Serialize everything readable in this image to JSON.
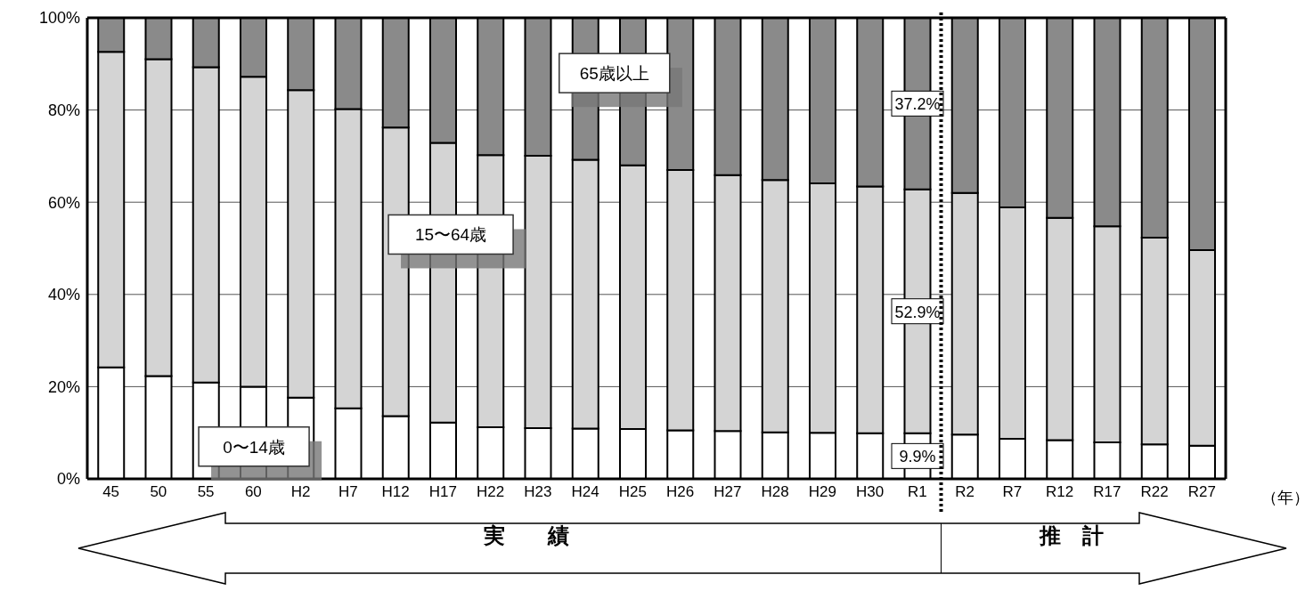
{
  "chart_data": {
    "type": "bar",
    "stacked": true,
    "xlabel": "（年）",
    "categories": [
      "45",
      "50",
      "55",
      "60",
      "H2",
      "H7",
      "H12",
      "H17",
      "H22",
      "H23",
      "H24",
      "H25",
      "H26",
      "H27",
      "H28",
      "H29",
      "H30",
      "R1",
      "R2",
      "R7",
      "R12",
      "R17",
      "R22",
      "R27"
    ],
    "series": [
      {
        "name": "0〜14歳",
        "color": "#ffffff",
        "values": [
          24.2,
          22.3,
          20.9,
          20.0,
          17.6,
          15.3,
          13.6,
          12.2,
          11.2,
          11.0,
          10.9,
          10.8,
          10.5,
          10.4,
          10.1,
          10.0,
          9.9,
          9.9,
          9.6,
          8.7,
          8.4,
          7.9,
          7.5,
          7.2
        ],
        "value_labels": [
          null,
          null,
          null,
          null,
          null,
          null,
          null,
          null,
          null,
          null,
          null,
          null,
          null,
          null,
          null,
          null,
          null,
          "9.9%",
          null,
          null,
          null,
          null,
          null,
          null
        ]
      },
      {
        "name": "15〜64歳",
        "color": "#d4d4d4",
        "values": [
          68.4,
          68.7,
          68.4,
          67.2,
          66.7,
          64.9,
          62.6,
          60.7,
          59.0,
          59.1,
          58.3,
          57.2,
          56.5,
          55.5,
          54.7,
          54.1,
          53.5,
          52.9,
          52.4,
          50.2,
          48.2,
          46.9,
          44.8,
          42.4
        ],
        "value_labels": [
          null,
          null,
          null,
          null,
          null,
          null,
          null,
          null,
          null,
          null,
          null,
          null,
          null,
          null,
          null,
          null,
          null,
          "52.9%",
          null,
          null,
          null,
          null,
          null,
          null
        ]
      },
      {
        "name": "65歳以上",
        "color": "#8a8a8a",
        "values": [
          7.4,
          9.0,
          10.7,
          12.8,
          15.7,
          19.8,
          23.8,
          27.1,
          29.8,
          29.9,
          30.8,
          32.0,
          33.0,
          34.1,
          35.2,
          35.9,
          36.6,
          37.2,
          38.0,
          41.1,
          43.4,
          45.2,
          47.7,
          50.4
        ],
        "value_labels": [
          null,
          null,
          null,
          null,
          null,
          null,
          null,
          null,
          null,
          null,
          null,
          null,
          null,
          null,
          null,
          null,
          null,
          "37.2%",
          null,
          null,
          null,
          null,
          null,
          null
        ]
      }
    ],
    "ylim": [
      0,
      100
    ],
    "yticks": [
      {
        "value": 0,
        "label": "0%"
      },
      {
        "value": 20,
        "label": "20%"
      },
      {
        "value": 40,
        "label": "40%"
      },
      {
        "value": 60,
        "label": "60%"
      },
      {
        "value": 80,
        "label": "80%"
      },
      {
        "value": 100,
        "label": "100%"
      }
    ],
    "grid": "y",
    "legend": false,
    "ref_lines": [
      {
        "axis": "x",
        "value": "R1",
        "line_style": "dotted"
      }
    ],
    "annotations": [
      "実　　績",
      "推　計"
    ]
  }
}
